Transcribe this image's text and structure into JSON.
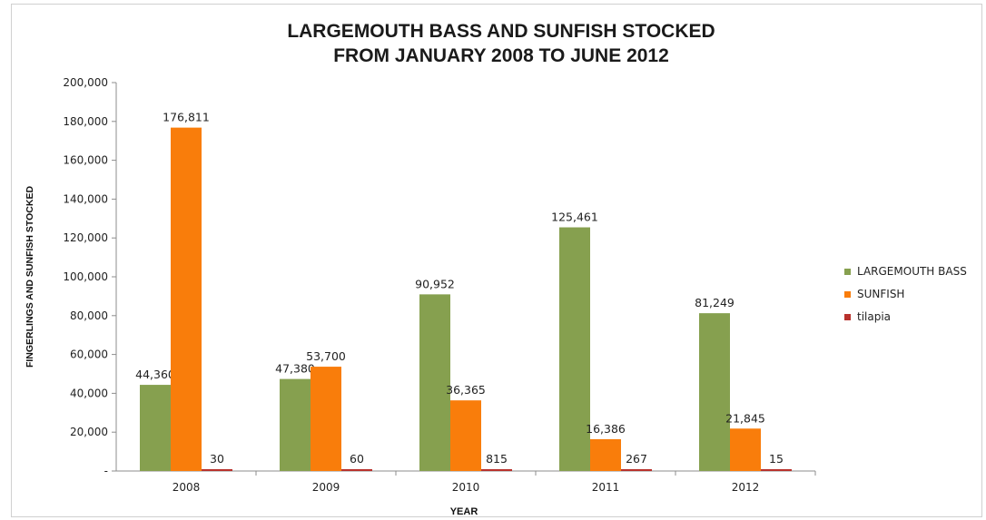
{
  "chart_data": {
    "type": "bar",
    "title_lines": [
      "LARGEMOUTH BASS AND SUNFISH STOCKED",
      "FROM JANUARY 2008 TO JUNE 2012"
    ],
    "xlabel": "YEAR",
    "ylabel": "FINGERLINGS AND SUNFISH STOCKED",
    "categories": [
      "2008",
      "2009",
      "2010",
      "2011",
      "2012"
    ],
    "ylim": [
      0,
      200000
    ],
    "yticks": [
      0,
      20000,
      40000,
      60000,
      80000,
      100000,
      120000,
      140000,
      160000,
      180000,
      200000
    ],
    "ytick_labels": [
      "-",
      "20,000",
      "40,000",
      "60,000",
      "80,000",
      "100,000",
      "120,000",
      "140,000",
      "160,000",
      "180,000",
      "200,000"
    ],
    "grid": false,
    "legend_position": "right",
    "series": [
      {
        "name": "LARGEMOUTH BASS",
        "color": "#86a04f",
        "values": [
          44360,
          47380,
          90952,
          125461,
          81249
        ],
        "labels": [
          "44,360",
          "47,380",
          "90,952",
          "125,461",
          "81,249"
        ]
      },
      {
        "name": "SUNFISH",
        "color": "#f97d0b",
        "values": [
          176811,
          53700,
          36365,
          16386,
          21845
        ],
        "labels": [
          "176,811",
          "53,700",
          "36,365",
          "16,386",
          "21,845"
        ]
      },
      {
        "name": "tilapia",
        "color": "#b8312c",
        "values": [
          30,
          60,
          815,
          267,
          15
        ],
        "labels": [
          "30",
          "60",
          "815",
          "267",
          "15"
        ]
      }
    ]
  }
}
